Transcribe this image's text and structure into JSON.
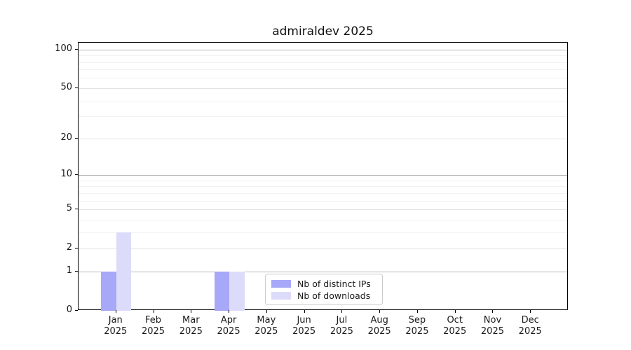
{
  "chart_data": {
    "type": "bar",
    "title": "admiraldev 2025",
    "categories": [
      "Jan 2025",
      "Feb 2025",
      "Mar 2025",
      "Apr 2025",
      "May 2025",
      "Jun 2025",
      "Jul 2025",
      "Aug 2025",
      "Sep 2025",
      "Oct 2025",
      "Nov 2025",
      "Dec 2025"
    ],
    "x": {
      "months": [
        "Jan",
        "Feb",
        "Mar",
        "Apr",
        "May",
        "Jun",
        "Jul",
        "Aug",
        "Sep",
        "Oct",
        "Nov",
        "Dec"
      ],
      "year": "2025"
    },
    "series": [
      {
        "name": "Nb of distinct IPs",
        "color": "#a8a8f8",
        "values": [
          1,
          0,
          0,
          1,
          0,
          0,
          0,
          0,
          0,
          0,
          0,
          0
        ]
      },
      {
        "name": "Nb of downloads",
        "color": "#dcdcfa",
        "values": [
          3,
          0,
          0,
          1,
          0,
          0,
          0,
          0,
          0,
          0,
          0,
          0
        ]
      }
    ],
    "yscale": "log1p",
    "ylim": [
      0,
      113
    ],
    "y_ticks": [
      0,
      1,
      2,
      5,
      10,
      20,
      50,
      100
    ],
    "y_decade_gridlines": [
      1,
      10,
      100
    ],
    "y_minor_gridlines": [
      3,
      4,
      6,
      7,
      8,
      9,
      30,
      40,
      60,
      70,
      80,
      90
    ],
    "grid": "both",
    "legend_position": "lower center",
    "xlabel": "",
    "ylabel": ""
  },
  "colors": {
    "background": "#ffffff",
    "axis": "#000000",
    "text": "#1a1a1a",
    "grid_decade": "#b6b6b6",
    "grid_major": "#e3e3e3",
    "grid_minor": "#f2f2f2",
    "legend_border": "#cccccc",
    "series_ips": "#a8a8f8",
    "series_downloads": "#dcdcfa"
  }
}
